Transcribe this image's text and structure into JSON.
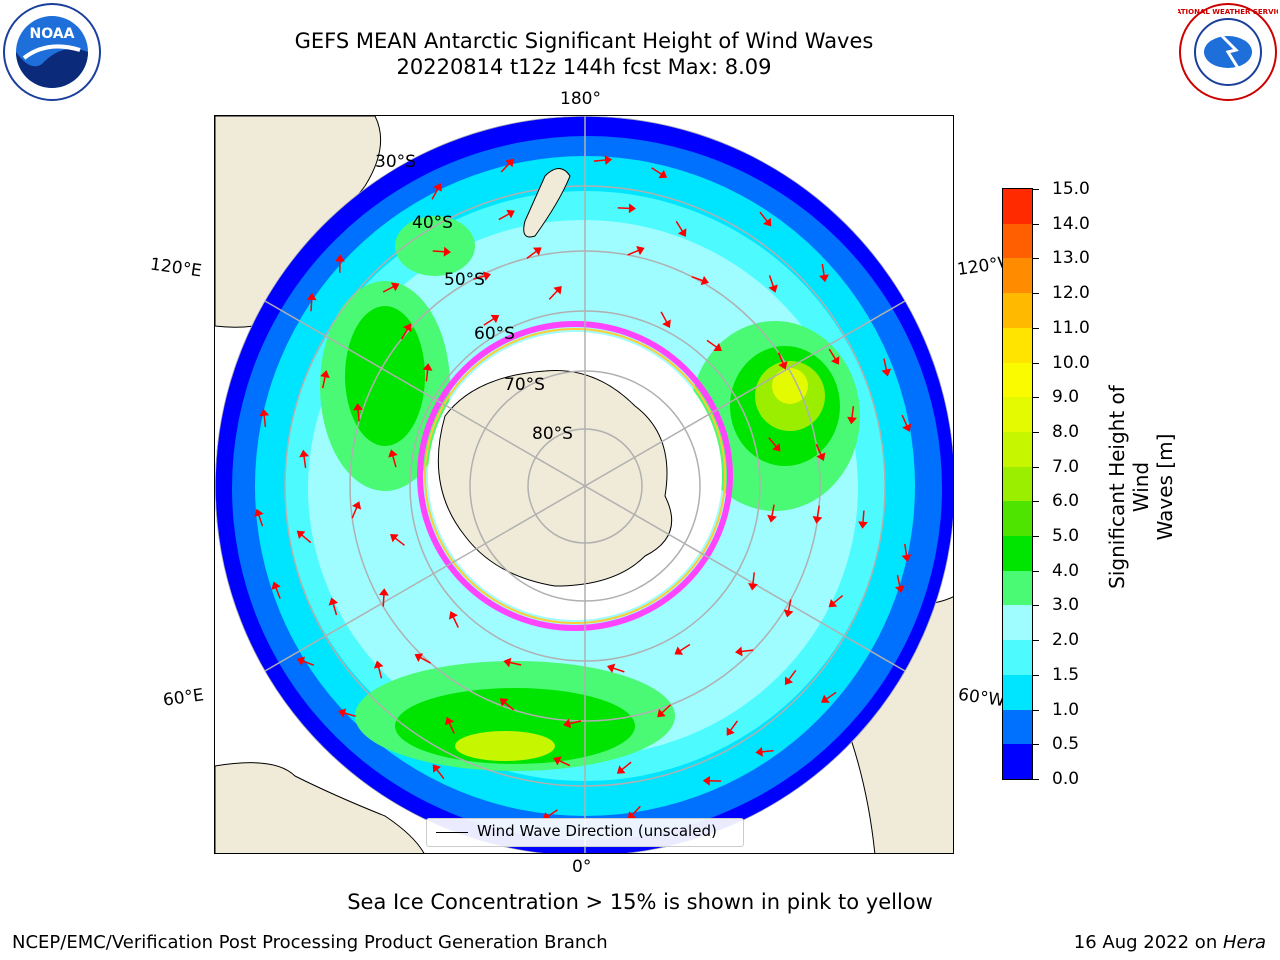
{
  "header": {
    "title_line1": "GEFS MEAN Antarctic Significant Height of Wind Waves",
    "title_line2": "20220814 t12z 144h fcst   Max: 8.09"
  },
  "logos": {
    "left": "NOAA",
    "right": "NATIONAL WEATHER SERVICE"
  },
  "map": {
    "longitude_labels": {
      "top": "180°",
      "bottom": "0°",
      "upper_left": "120°E",
      "lower_left": "60°E",
      "upper_right": "120°W",
      "lower_right": "60°W"
    },
    "latitude_labels": [
      "30°S",
      "40°S",
      "50°S",
      "60°S",
      "70°S",
      "80°S"
    ],
    "legend_label": "Wind Wave Direction (unscaled)",
    "colors": {
      "land": "#efebd8",
      "ice_pink": "#ff44ff",
      "ice_yellow": "#ffcc33",
      "arrow": "#ff0000",
      "grid": "#b0b0b0"
    }
  },
  "colorbar": {
    "label": "Significant Height of Wind Waves [m]",
    "label_line1": "Significant Height of Wind",
    "label_line2": "Waves [m]",
    "ticks": [
      "15.0",
      "14.0",
      "13.0",
      "12.0",
      "11.0",
      "10.0",
      "9.0",
      "8.0",
      "7.0",
      "6.0",
      "5.0",
      "4.0",
      "3.0",
      "2.0",
      "1.5",
      "1.0",
      "0.5",
      "0.0"
    ],
    "colors": [
      "#0000ff",
      "#0071ff",
      "#00e5ff",
      "#4dfbff",
      "#9ffcff",
      "#4afa74",
      "#00e500",
      "#4fe300",
      "#9bee00",
      "#c6f600",
      "#e3fa00",
      "#fbfb00",
      "#ffe400",
      "#ffba00",
      "#ff8c00",
      "#ff5f00",
      "#ff2a00"
    ]
  },
  "footer": {
    "caption": "Sea Ice Concentration > 15% is shown in pink to yellow",
    "left": "NCEP/EMC/Verification Post Processing Product Generation Branch",
    "right_prefix": "16 Aug 2022 on ",
    "right_italic": "Hera"
  }
}
